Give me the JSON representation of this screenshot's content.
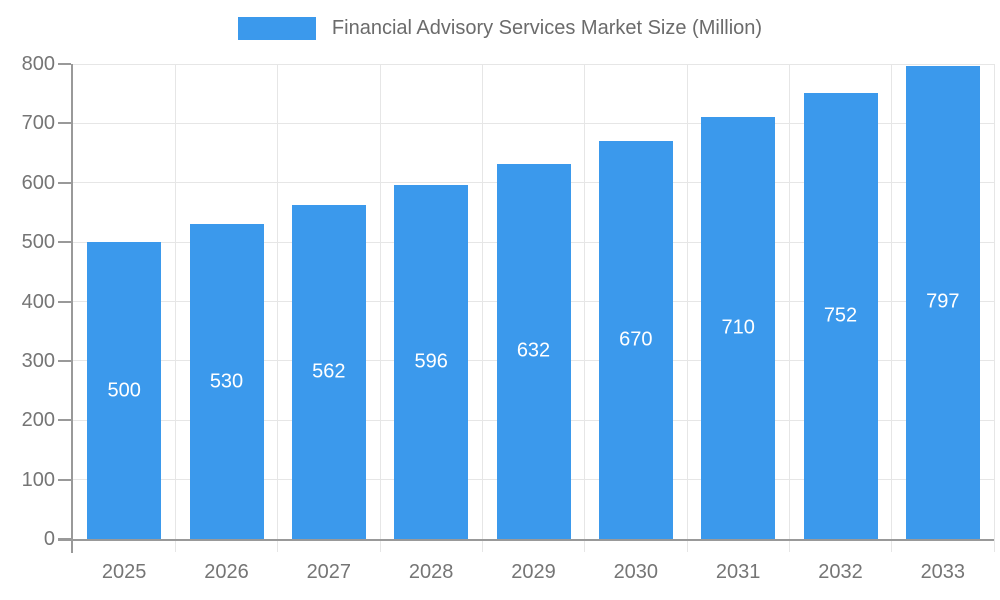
{
  "colors": {
    "bar": "#3B99EC",
    "grid": "#E6E6E6",
    "axis": "#999999",
    "tick_label": "#757575",
    "legend_text": "#6B6B6B",
    "bar_label": "#FFFFFF"
  },
  "chart_data": {
    "type": "bar",
    "title": "Financial Advisory Services Market Size (Million)",
    "categories": [
      "2025",
      "2026",
      "2027",
      "2028",
      "2029",
      "2030",
      "2031",
      "2032",
      "2033"
    ],
    "values": [
      500,
      530,
      562,
      596,
      632,
      670,
      710,
      752,
      797
    ],
    "xlabel": "",
    "ylabel": "",
    "ylim": [
      0,
      800
    ],
    "yticks": [
      0,
      100,
      200,
      300,
      400,
      500,
      600,
      700,
      800
    ],
    "grid": true,
    "legend_position": "top-center",
    "bar_label_position": "inside-center"
  }
}
